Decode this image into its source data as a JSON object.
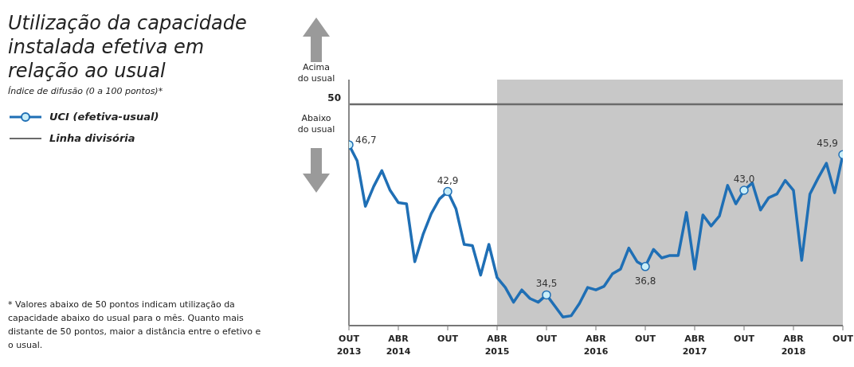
{
  "chart_data": {
    "type": "line",
    "title": "Utilização da capacidade instalada efetiva em relação ao usual",
    "subtitle": "Índice de difusão (0 a 100 pontos)*",
    "x": [
      "2013-10",
      "2013-11",
      "2013-12",
      "2014-01",
      "2014-02",
      "2014-03",
      "2014-04",
      "2014-05",
      "2014-06",
      "2014-07",
      "2014-08",
      "2014-09",
      "2014-10",
      "2014-11",
      "2014-12",
      "2015-01",
      "2015-02",
      "2015-03",
      "2015-04",
      "2015-05",
      "2015-06",
      "2015-07",
      "2015-08",
      "2015-09",
      "2015-10",
      "2015-11",
      "2015-12",
      "2016-01",
      "2016-02",
      "2016-03",
      "2016-04",
      "2016-05",
      "2016-06",
      "2016-07",
      "2016-08",
      "2016-09",
      "2016-10",
      "2016-11",
      "2016-12",
      "2017-01",
      "2017-02",
      "2017-03",
      "2017-04",
      "2017-05",
      "2017-06",
      "2017-07",
      "2017-08",
      "2017-09",
      "2017-10",
      "2017-11",
      "2017-12",
      "2018-01",
      "2018-02",
      "2018-03",
      "2018-04",
      "2018-05",
      "2018-06",
      "2018-07",
      "2018-08",
      "2018-09",
      "2018-10"
    ],
    "series": [
      {
        "name": "UCI (efetiva-usual)",
        "color": "#1f6fb5",
        "values": [
          46.7,
          45.4,
          41.7,
          43.3,
          44.6,
          43.0,
          42.0,
          41.9,
          37.2,
          39.4,
          41.1,
          42.3,
          42.9,
          41.5,
          38.6,
          38.5,
          36.1,
          38.6,
          35.9,
          35.1,
          33.9,
          34.9,
          34.2,
          33.9,
          34.5,
          33.6,
          32.7,
          32.8,
          33.8,
          35.1,
          34.9,
          35.2,
          36.2,
          36.6,
          38.3,
          37.2,
          36.8,
          38.2,
          37.5,
          37.7,
          37.7,
          41.2,
          36.6,
          41.0,
          40.1,
          40.9,
          43.4,
          41.9,
          43.0,
          43.6,
          41.4,
          42.4,
          42.7,
          43.8,
          43.0,
          37.3,
          42.7,
          44.0,
          45.2,
          42.8,
          45.9
        ],
        "value_labels": [
          "46,7",
          null,
          null,
          null,
          null,
          null,
          null,
          null,
          null,
          null,
          null,
          null,
          "42,9",
          null,
          null,
          null,
          null,
          null,
          null,
          null,
          null,
          null,
          null,
          null,
          "34,5",
          null,
          null,
          null,
          null,
          null,
          null,
          null,
          null,
          null,
          null,
          null,
          "36,8",
          null,
          null,
          null,
          null,
          null,
          null,
          null,
          null,
          null,
          null,
          null,
          "43,0",
          null,
          null,
          null,
          null,
          null,
          null,
          null,
          null,
          null,
          null,
          null,
          "45,9"
        ]
      },
      {
        "name": "Linha divisória",
        "color": "#6b6b6b",
        "values": [
          50,
          50,
          50,
          50,
          50,
          50,
          50,
          50,
          50,
          50,
          50,
          50,
          50,
          50,
          50,
          50,
          50,
          50,
          50,
          50,
          50,
          50,
          50,
          50,
          50,
          50,
          50,
          50,
          50,
          50,
          50,
          50,
          50,
          50,
          50,
          50,
          50,
          50,
          50,
          50,
          50,
          50,
          50,
          50,
          50,
          50,
          50,
          50,
          50,
          50,
          50,
          50,
          50,
          50,
          50,
          50,
          50,
          50,
          50,
          50,
          50
        ]
      }
    ],
    "xlim": [
      "2013-10",
      "2018-10"
    ],
    "xticks": [
      {
        "value": "2013-10",
        "label": "OUT 2013"
      },
      {
        "value": "2014-04",
        "label": "ABR 2014"
      },
      {
        "value": "2014-10",
        "label": "OUT"
      },
      {
        "value": "2015-04",
        "label": "ABR 2015"
      },
      {
        "value": "2015-10",
        "label": "OUT"
      },
      {
        "value": "2016-04",
        "label": "ABR 2016"
      },
      {
        "value": "2016-10",
        "label": "OUT"
      },
      {
        "value": "2017-04",
        "label": "ABR 2017"
      },
      {
        "value": "2017-10",
        "label": "OUT"
      },
      {
        "value": "2018-04",
        "label": "ABR 2018"
      },
      {
        "value": "2018-10",
        "label": "OUT"
      }
    ],
    "ylim": [
      32,
      52
    ],
    "bands": [
      {
        "axis": "x",
        "from": "2015-04",
        "to": "2018-10",
        "color": "#c8c8c8"
      }
    ],
    "annotations": [
      "Acima do usual",
      "Abaixo do usual",
      "* Valores abaixo de 50 pontos indicam utilização da capacidade abaixo do usual para o mês. Quanto mais distante de 50 pontos, maior a distância entre o efetivo e o usual.",
      "50"
    ],
    "legend": "left",
    "line_style": "solid"
  }
}
